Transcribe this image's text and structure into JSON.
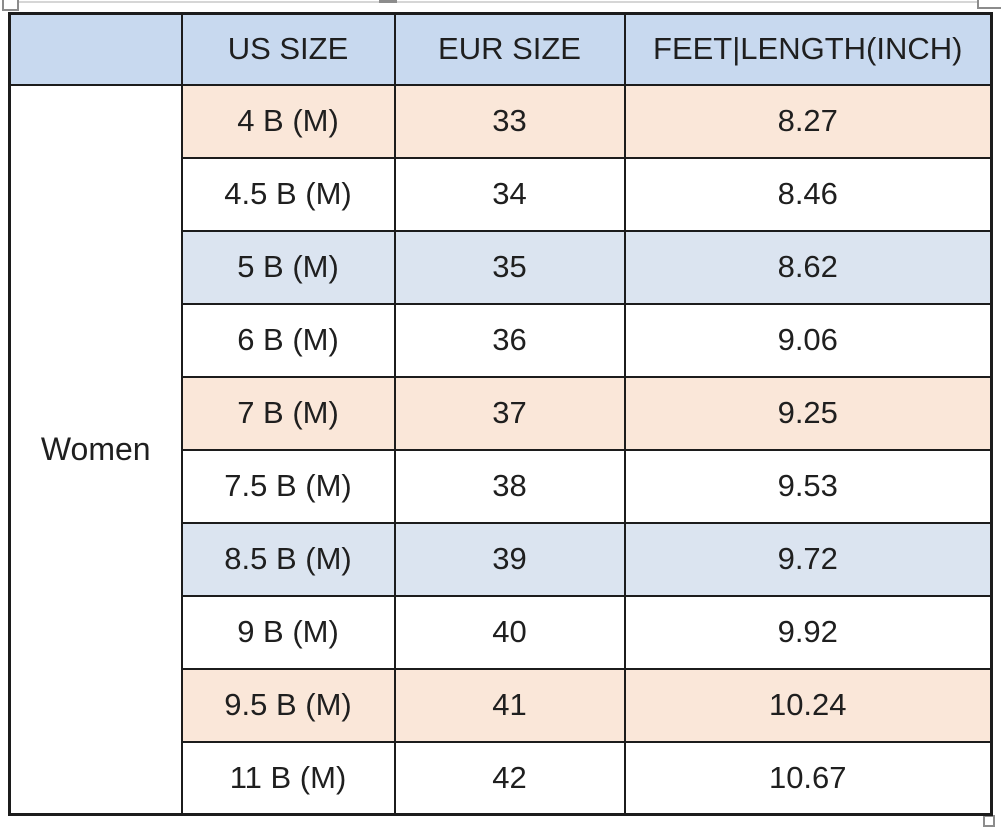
{
  "chart_data": {
    "type": "table",
    "group_label": "Women",
    "columns": [
      "",
      "US SIZE",
      "EUR SIZE",
      "FEET|LENGTH(INCH)"
    ],
    "rows": [
      {
        "us_size": "4 B (M)",
        "eur_size": "33",
        "feet_length_inch": "8.27",
        "band": "peach"
      },
      {
        "us_size": "4.5 B (M)",
        "eur_size": "34",
        "feet_length_inch": "8.46",
        "band": "white"
      },
      {
        "us_size": "5 B (M)",
        "eur_size": "35",
        "feet_length_inch": "8.62",
        "band": "blue"
      },
      {
        "us_size": "6 B (M)",
        "eur_size": "36",
        "feet_length_inch": "9.06",
        "band": "white"
      },
      {
        "us_size": "7 B (M)",
        "eur_size": "37",
        "feet_length_inch": "9.25",
        "band": "peach"
      },
      {
        "us_size": "7.5 B (M)",
        "eur_size": "38",
        "feet_length_inch": "9.53",
        "band": "white"
      },
      {
        "us_size": "8.5 B (M)",
        "eur_size": "39",
        "feet_length_inch": "9.72",
        "band": "blue"
      },
      {
        "us_size": "9 B (M)",
        "eur_size": "40",
        "feet_length_inch": "9.92",
        "band": "white"
      },
      {
        "us_size": "9.5 B (M)",
        "eur_size": "41",
        "feet_length_inch": "10.24",
        "band": "peach"
      },
      {
        "us_size": "11 B (M)",
        "eur_size": "42",
        "feet_length_inch": "10.67",
        "band": "white"
      }
    ]
  },
  "colors": {
    "header_blue": "#c8d9ef",
    "row_blue": "#dbe4f0",
    "row_peach": "#fae7d9",
    "row_white": "#ffffff",
    "border": "#1c1c1c",
    "text": "#1f1f1f",
    "handle_gray": "#8c8c8c"
  },
  "selection": {
    "handles": [
      "top-left",
      "top-mid",
      "top-right",
      "bottom-right"
    ]
  }
}
